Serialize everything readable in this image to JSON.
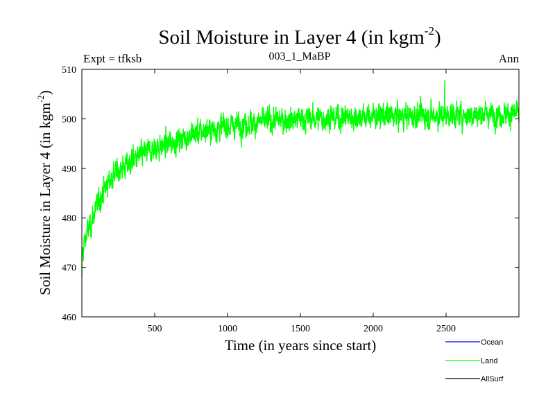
{
  "chart_data": {
    "type": "line",
    "title_main": "Soil Moisture in Layer 4 (in kgm",
    "title_sup": "-2",
    "title_close": ")",
    "subtitle_left": "Expt = tfksb",
    "subtitle_center": "003_1_MaBP",
    "subtitle_right": "Ann",
    "xlabel": "Time (in years since start)",
    "ylabel_main": "Soil Moisture in Layer 4 (in kgm",
    "ylabel_sup": "-2",
    "ylabel_close": ")",
    "xlim": [
      0,
      3000
    ],
    "ylim": [
      460,
      510
    ],
    "x_ticks": [
      500,
      1000,
      1500,
      2000,
      2500
    ],
    "y_ticks": [
      460,
      470,
      480,
      490,
      500,
      510
    ],
    "x_tick_labels": [
      "500",
      "1000",
      "1500",
      "2000",
      "2500"
    ],
    "y_tick_labels": [
      "460",
      "470",
      "480",
      "490",
      "500",
      "510"
    ],
    "series": [
      {
        "name": "Land",
        "color": "#00ff00",
        "x": [
          0,
          25,
          50,
          75,
          100,
          125,
          150,
          175,
          200,
          250,
          300,
          350,
          400,
          450,
          500,
          550,
          600,
          650,
          700,
          750,
          800,
          850,
          900,
          950,
          1000,
          1100,
          1200,
          1300,
          1400,
          1500,
          1600,
          1700,
          1800,
          1900,
          2000,
          2100,
          2200,
          2300,
          2400,
          2500,
          2600,
          2700,
          2800,
          2900,
          3000
        ],
        "values": [
          472,
          476,
          478,
          480,
          482,
          484,
          485.5,
          487,
          488,
          489.5,
          490.5,
          491.5,
          492.5,
          493.2,
          494,
          494.5,
          495,
          495.6,
          496.2,
          496.7,
          497.2,
          497.6,
          498,
          498.3,
          498.5,
          499,
          499.3,
          499.6,
          499.8,
          500,
          500.1,
          500.2,
          500.3,
          500.4,
          500.5,
          500.5,
          500.6,
          500.6,
          500.7,
          500.8,
          500.8,
          500.9,
          501,
          501,
          501
        ],
        "noise_amplitude": 2.3,
        "notable_points": {
          "min": [
            0,
            468
          ],
          "max": [
            2490,
            507.7
          ]
        }
      },
      {
        "name": "Ocean",
        "color": "#0000ff",
        "values": []
      },
      {
        "name": "AllSurf",
        "color": "#000000",
        "values": []
      }
    ],
    "legend": [
      {
        "label": "Ocean",
        "color": "#0000ff"
      },
      {
        "label": "Land",
        "color": "#00ff00"
      },
      {
        "label": "AllSurf",
        "color": "#000000"
      }
    ],
    "legend_position": "bottom-right"
  }
}
